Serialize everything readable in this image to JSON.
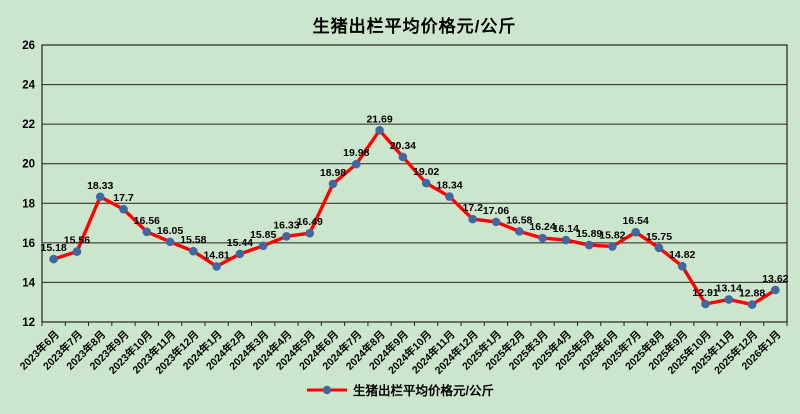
{
  "title": "生猪出栏平均价格元/公斤",
  "legend": {
    "label": "生猪出栏平均价格元/公斤"
  },
  "colors": {
    "background": "#cce6cd",
    "line": "#ff0000",
    "marker": "#3f68a0",
    "grid": "#222222",
    "text": "#000000"
  },
  "chart_data": {
    "type": "line",
    "title": "生猪出栏平均价格元/公斤",
    "categories": [
      "2023年6月",
      "2023年7月",
      "2023年8月",
      "2023年9月",
      "2023年10月",
      "2023年11月",
      "2023年12月",
      "2024年1月",
      "2024年2月",
      "2024年3月",
      "2024年4月",
      "2024年5月",
      "2024年6月",
      "2024年7月",
      "2024年8月",
      "2024年9月",
      "2024年10月",
      "2024年11月",
      "2024年12月",
      "2025年1月",
      "2025年2月",
      "2025年3月",
      "2025年4月",
      "2025年5月",
      "2025年6月",
      "2025年7月",
      "2025年8月",
      "2025年9月",
      "2025年10月",
      "2025年11月",
      "2025年12月",
      "2026年1月"
    ],
    "series": [
      {
        "name": "生猪出栏平均价格元/公斤",
        "values": [
          15.18,
          15.56,
          18.33,
          17.7,
          16.56,
          16.05,
          15.58,
          14.81,
          15.44,
          15.85,
          16.33,
          16.49,
          18.98,
          19.98,
          21.69,
          20.34,
          19.02,
          18.34,
          17.2,
          17.06,
          16.58,
          16.24,
          16.14,
          15.89,
          15.82,
          16.54,
          15.75,
          14.82,
          12.91,
          13.14,
          12.88,
          13.62
        ]
      }
    ],
    "ylim": [
      12,
      26
    ],
    "yticks": [
      12,
      14,
      16,
      18,
      20,
      22,
      24,
      26
    ],
    "grid": true,
    "data_labels": true,
    "marker": "circle",
    "legend_position": "bottom",
    "x_label_rotation": -45
  }
}
